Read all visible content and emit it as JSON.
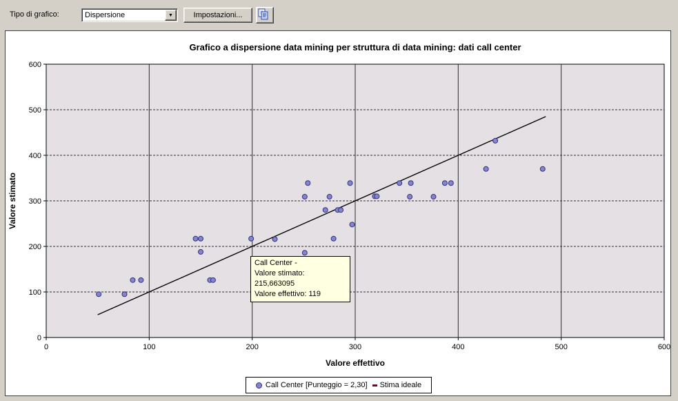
{
  "toolbar": {
    "type_label": "Tipo di grafico:",
    "chart_type": {
      "value": "Dispersione"
    },
    "settings_button": "Impostazioni..."
  },
  "chart_panel": {
    "title": "Grafico a dispersione data mining per struttura di data mining: dati call center",
    "xlabel": "Valore effettivo",
    "ylabel": "Valore stimato"
  },
  "tooltip": {
    "line1": "Call Center -",
    "line2": "Valore stimato: 215,663095",
    "line3": "Valore effettivo: 119"
  },
  "legend": {
    "series1_label": "Call Center [Punteggio = 2,30]",
    "series2_label": "Stima ideale"
  },
  "chart_data": {
    "type": "scatter",
    "title": "Grafico a dispersione data mining per struttura di data mining: dati call center",
    "xlabel": "Valore effettivo",
    "ylabel": "Valore stimato",
    "xlim": [
      0,
      600
    ],
    "ylim": [
      0,
      600
    ],
    "xticks": [
      0,
      100,
      200,
      300,
      400,
      500,
      600
    ],
    "yticks": [
      0,
      100,
      200,
      300,
      400,
      500,
      600
    ],
    "grid": {
      "vertical": "solid",
      "horizontal": "dashed",
      "on": true
    },
    "legend_position": "bottom",
    "colors": {
      "plot_bg": "#e4e0e4",
      "grid": "#2b2b2b",
      "axis": "#000000",
      "point_fill": "#8585cf",
      "point_border": "#34347c",
      "ideal_line": "#000000",
      "legend_ideal_marker": "#800020",
      "tooltip_bg": "#ffffe1"
    },
    "series": [
      {
        "name": "Call Center [Punteggio = 2,30]",
        "type": "scatter",
        "points": [
          [
            51,
            95
          ],
          [
            76,
            95
          ],
          [
            84,
            126
          ],
          [
            92,
            126
          ],
          [
            145,
            217
          ],
          [
            150,
            217
          ],
          [
            150,
            188
          ],
          [
            159,
            126
          ],
          [
            162,
            126
          ],
          [
            199,
            217
          ],
          [
            222,
            216
          ],
          [
            251,
            186
          ],
          [
            279,
            217
          ],
          [
            297,
            248
          ],
          [
            271,
            280
          ],
          [
            283,
            280
          ],
          [
            286,
            280
          ],
          [
            251,
            309
          ],
          [
            275,
            309
          ],
          [
            319,
            310
          ],
          [
            321,
            310
          ],
          [
            353,
            309
          ],
          [
            376,
            309
          ],
          [
            254,
            339
          ],
          [
            295,
            339
          ],
          [
            343,
            339
          ],
          [
            354,
            339
          ],
          [
            387,
            339
          ],
          [
            393,
            339
          ],
          [
            427,
            370
          ],
          [
            482,
            370
          ],
          [
            436,
            432
          ]
        ]
      },
      {
        "name": "Stima ideale",
        "type": "line",
        "points": [
          [
            50,
            50
          ],
          [
            485,
            485
          ]
        ]
      }
    ]
  }
}
